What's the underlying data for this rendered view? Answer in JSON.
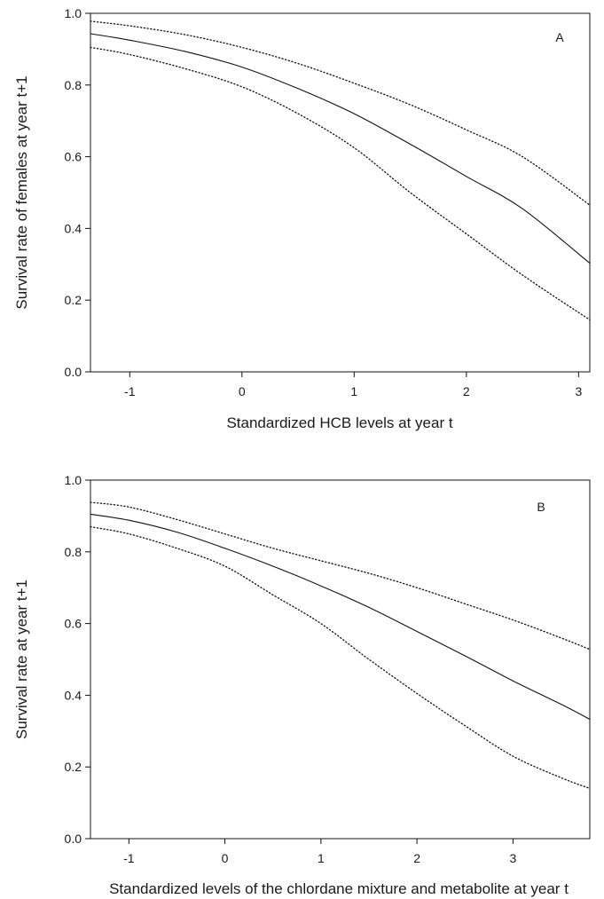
{
  "chart_data": [
    {
      "type": "line",
      "panel_label": "A",
      "xlabel": "Standardized HCB levels at year t",
      "ylabel": "Survival rate of females at year t+1",
      "xlim": [
        -1.35,
        3.1
      ],
      "ylim": [
        0,
        1
      ],
      "xticks": [
        -1,
        0,
        1,
        2,
        3
      ],
      "yticks": [
        "0.0",
        "0.2",
        "0.4",
        "0.6",
        "0.8",
        "1.0"
      ],
      "grid": false,
      "series": [
        {
          "style": "solid",
          "x": [
            -1.35,
            -1.0,
            -0.5,
            0.0,
            0.5,
            1.0,
            1.5,
            2.0,
            2.5,
            3.1
          ],
          "y": [
            0.943,
            0.925,
            0.893,
            0.85,
            0.79,
            0.72,
            0.635,
            0.545,
            0.455,
            0.303
          ]
        },
        {
          "style": "dotted",
          "x": [
            -1.35,
            -1.0,
            -0.5,
            0.0,
            0.5,
            1.0,
            1.5,
            2.0,
            2.5,
            3.1
          ],
          "y": [
            0.978,
            0.965,
            0.94,
            0.905,
            0.86,
            0.805,
            0.745,
            0.675,
            0.6,
            0.465
          ]
        },
        {
          "style": "dotted",
          "x": [
            -1.35,
            -1.0,
            -0.5,
            0.0,
            0.5,
            1.0,
            1.5,
            2.0,
            2.5,
            3.1
          ],
          "y": [
            0.905,
            0.885,
            0.845,
            0.795,
            0.72,
            0.625,
            0.5,
            0.385,
            0.27,
            0.145
          ]
        }
      ]
    },
    {
      "type": "line",
      "panel_label": "B",
      "xlabel": "Standardized levels of the chlordane mixture and metabolite at year t",
      "ylabel": "Survival rate at year t+1",
      "xlim": [
        -1.4,
        3.8
      ],
      "ylim": [
        0,
        1
      ],
      "xticks": [
        -1,
        0,
        1,
        2,
        3
      ],
      "yticks": [
        "0.0",
        "0.2",
        "0.4",
        "0.6",
        "0.8",
        "1.0"
      ],
      "grid": false,
      "series": [
        {
          "style": "solid",
          "x": [
            -1.4,
            -1.0,
            -0.5,
            0.0,
            0.5,
            1.0,
            1.5,
            2.0,
            2.5,
            3.0,
            3.5,
            3.8
          ],
          "y": [
            0.905,
            0.888,
            0.855,
            0.81,
            0.76,
            0.705,
            0.645,
            0.578,
            0.51,
            0.44,
            0.375,
            0.333
          ]
        },
        {
          "style": "dotted",
          "x": [
            -1.4,
            -1.0,
            -0.5,
            0.0,
            0.5,
            1.0,
            1.5,
            2.0,
            2.5,
            3.0,
            3.5,
            3.8
          ],
          "y": [
            0.938,
            0.925,
            0.89,
            0.85,
            0.81,
            0.775,
            0.74,
            0.7,
            0.655,
            0.61,
            0.56,
            0.528
          ]
        },
        {
          "style": "dotted",
          "x": [
            -1.4,
            -1.0,
            -0.5,
            0.0,
            0.5,
            1.0,
            1.5,
            2.0,
            2.5,
            3.0,
            3.5,
            3.8
          ],
          "y": [
            0.87,
            0.85,
            0.81,
            0.76,
            0.68,
            0.6,
            0.5,
            0.405,
            0.315,
            0.23,
            0.17,
            0.14
          ]
        }
      ]
    }
  ]
}
